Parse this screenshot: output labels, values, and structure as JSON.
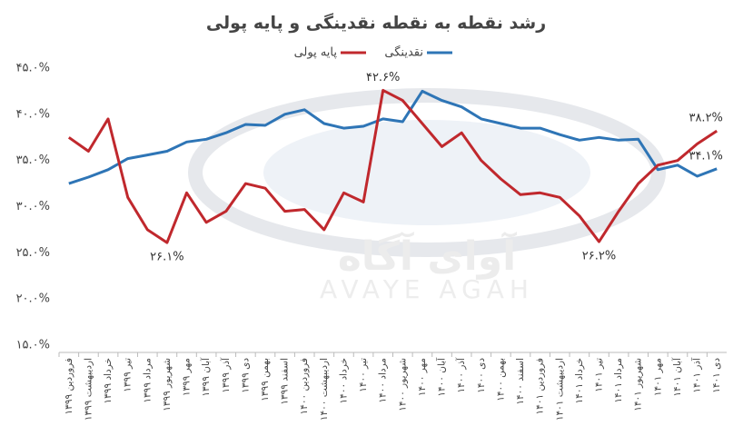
{
  "chart_data": {
    "type": "line",
    "title": "رشد نقطه به نقطه نقدینگی و پایه پولی",
    "watermark": [
      "آوای آگاه",
      "AVAYE AGAH"
    ],
    "categories": [
      "فروردین ۱۳۹۹",
      "اردیبهشت ۱۳۹۹",
      "خرداد ۱۳۹۹",
      "تیر ۱۳۹۹",
      "مرداد ۱۳۹۹",
      "شهریور ۱۳۹۹",
      "مهر ۱۳۹۹",
      "آبان ۱۳۹۹",
      "آذر ۱۳۹۹",
      "دی ۱۳۹۹",
      "بهمن ۱۳۹۹",
      "اسفند ۱۳۹۹",
      "فروردین ۱۴۰۰",
      "اردیبهشت ۱۴۰۰",
      "خرداد ۱۴۰۰",
      "تیر ۱۴۰۰",
      "مرداد ۱۴۰۰",
      "شهریور ۱۴۰۰",
      "مهر ۱۴۰۰",
      "آبان ۱۴۰۰",
      "آذر ۱۴۰۰",
      "دی ۱۴۰۰",
      "بهمن ۱۴۰۰",
      "اسفند ۱۴۰۰",
      "فروردین ۱۴۰۱",
      "اردیبهشت ۱۴۰۱",
      "خرداد ۱۴۰۱",
      "تیر ۱۴۰۱",
      "مرداد ۱۴۰۱",
      "شهریور ۱۴۰۱",
      "مهر ۱۴۰۱",
      "آبان ۱۴۰۱",
      "آذر ۱۴۰۱",
      "دی ۱۴۰۱"
    ],
    "series": [
      {
        "name": "نقدینگی",
        "color": "#2e75b6",
        "values": [
          32.5,
          33.2,
          34.0,
          35.2,
          35.6,
          36.0,
          37.0,
          37.3,
          38.0,
          38.9,
          38.8,
          40.0,
          40.5,
          39.0,
          38.5,
          38.7,
          39.5,
          39.2,
          42.5,
          41.5,
          40.8,
          39.5,
          39.0,
          38.5,
          38.5,
          37.8,
          37.2,
          37.5,
          37.2,
          37.3,
          34.0,
          34.5,
          33.3,
          34.1
        ],
        "value_labels": [
          null,
          null,
          null,
          null,
          null,
          null,
          null,
          null,
          null,
          null,
          null,
          null,
          null,
          null,
          null,
          null,
          null,
          null,
          null,
          null,
          null,
          null,
          null,
          null,
          null,
          null,
          null,
          null,
          null,
          null,
          null,
          null,
          null,
          "۳۴.۱%"
        ]
      },
      {
        "name": "پایه پولی",
        "color": "#c0282d",
        "values": [
          37.5,
          36.0,
          39.5,
          31.0,
          27.5,
          26.1,
          31.5,
          28.3,
          29.5,
          32.5,
          32.0,
          29.5,
          29.7,
          27.5,
          31.5,
          30.5,
          42.6,
          41.5,
          39.0,
          36.5,
          38.0,
          35.0,
          33.0,
          31.3,
          31.5,
          31.0,
          29.0,
          26.2,
          29.5,
          32.5,
          34.5,
          35.0,
          36.8,
          38.2
        ],
        "value_labels": [
          null,
          null,
          null,
          null,
          null,
          "۲۶.۱%",
          null,
          null,
          null,
          null,
          null,
          null,
          null,
          null,
          null,
          null,
          "۴۲.۶%",
          null,
          null,
          null,
          null,
          null,
          null,
          null,
          null,
          null,
          null,
          "۲۶.۲%",
          null,
          null,
          null,
          null,
          null,
          "۳۸.۲%"
        ]
      }
    ],
    "ylim": [
      15,
      45
    ],
    "yticks": [
      {
        "value": 15,
        "label": "۱۵.۰%"
      },
      {
        "value": 20,
        "label": "۲۰.۰%"
      },
      {
        "value": 25,
        "label": "۲۵.۰%"
      },
      {
        "value": 30,
        "label": "۳۰.۰%"
      },
      {
        "value": 35,
        "label": "۳۵.۰%"
      },
      {
        "value": 40,
        "label": "۴۰.۰%"
      },
      {
        "value": 45,
        "label": "۴۵.۰%"
      }
    ],
    "grid": false
  }
}
